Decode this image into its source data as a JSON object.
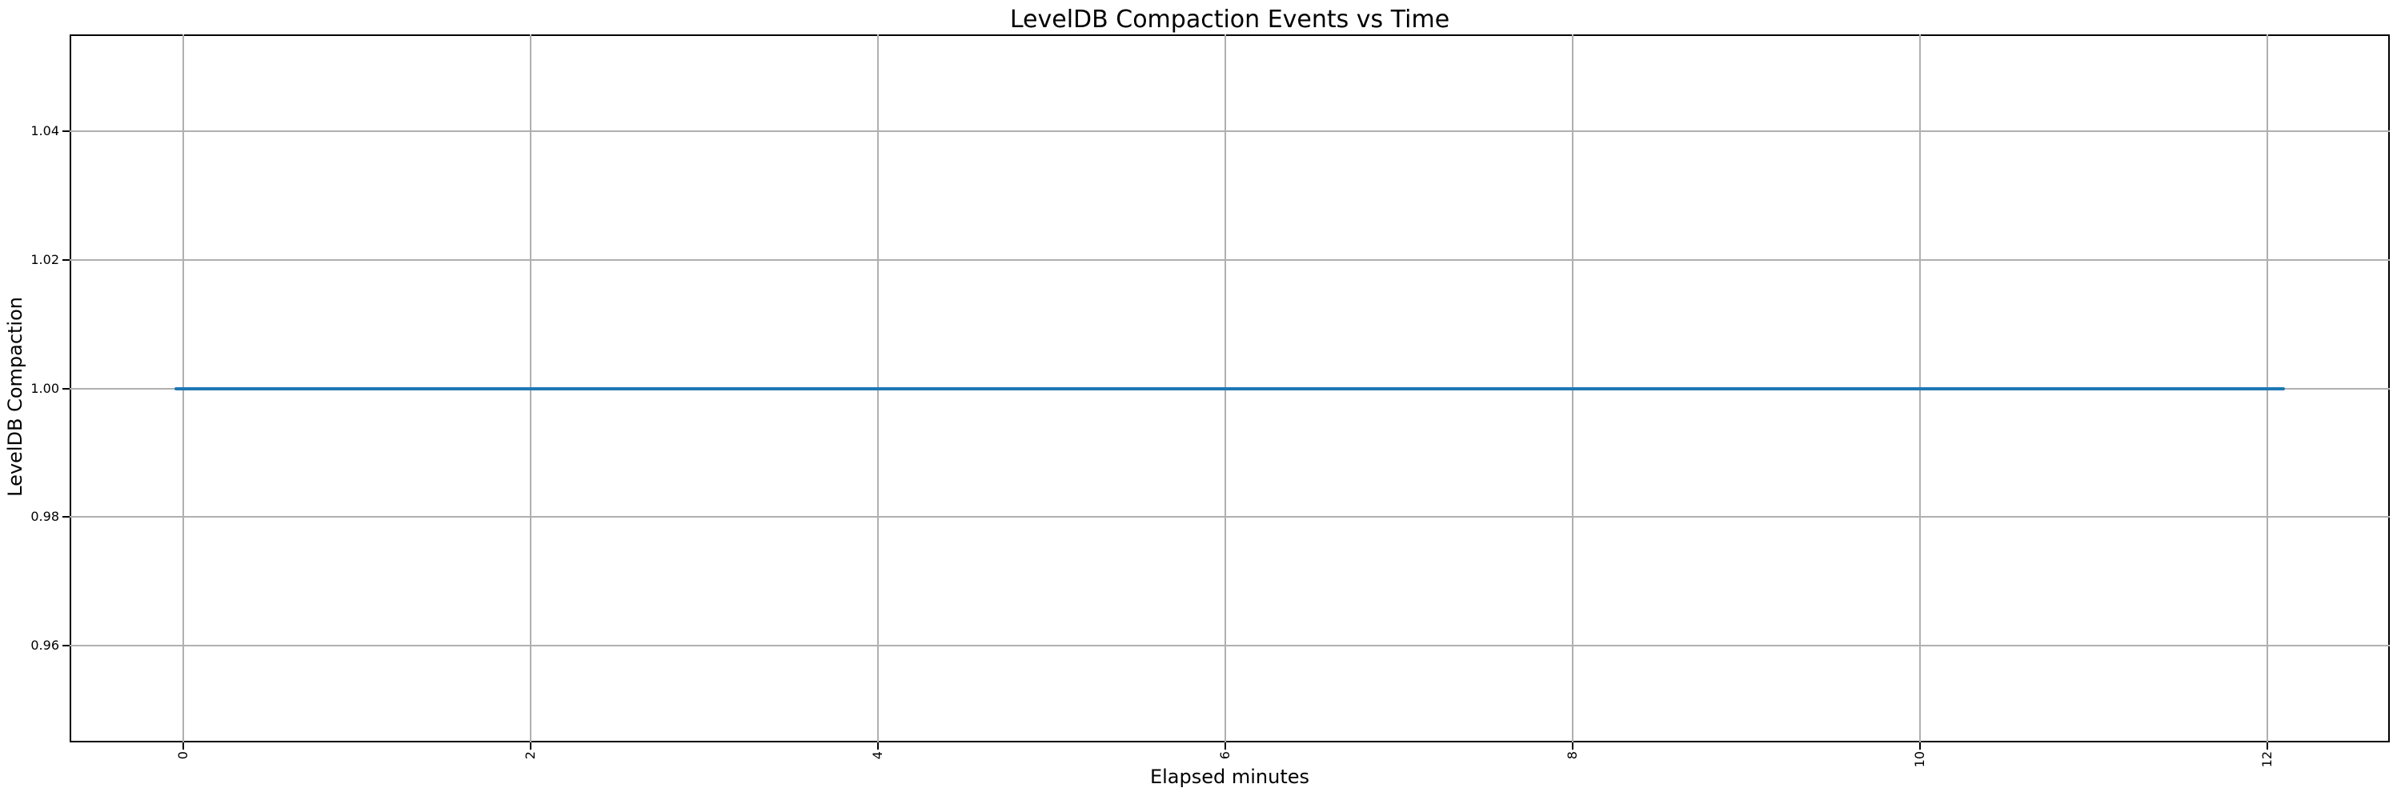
{
  "chart_data": {
    "type": "line",
    "title": "LevelDB Compaction Events vs Time",
    "xlabel": "Elapsed minutes",
    "ylabel": "LevelDB Compaction",
    "xlim": [
      -0.655,
      12.705
    ],
    "ylim": [
      0.945,
      1.055
    ],
    "x_ticks": [
      {
        "label": "0",
        "value": 0
      },
      {
        "label": "2",
        "value": 2
      },
      {
        "label": "4",
        "value": 4
      },
      {
        "label": "6",
        "value": 6
      },
      {
        "label": "8",
        "value": 8
      },
      {
        "label": "10",
        "value": 10
      },
      {
        "label": "12",
        "value": 12
      }
    ],
    "y_ticks": [
      {
        "label": "1.04",
        "value": 1.04
      },
      {
        "label": "1.02",
        "value": 1.02
      },
      {
        "label": "1.00",
        "value": 1.0
      },
      {
        "label": "0.98",
        "value": 0.98
      },
      {
        "label": "0.96",
        "value": 0.96
      }
    ],
    "x_tick_rotation_deg": 90,
    "grid": true,
    "legend": "none",
    "series": [
      {
        "name": "LevelDB Compaction",
        "color": "#1f77b4",
        "x": [
          -0.05,
          12.1
        ],
        "y": [
          1.0,
          1.0
        ]
      }
    ],
    "colors": {
      "line": "#1f77b4",
      "grid": "#b0b0b0",
      "spine": "#000000",
      "text": "#000000",
      "background": "#ffffff"
    }
  }
}
